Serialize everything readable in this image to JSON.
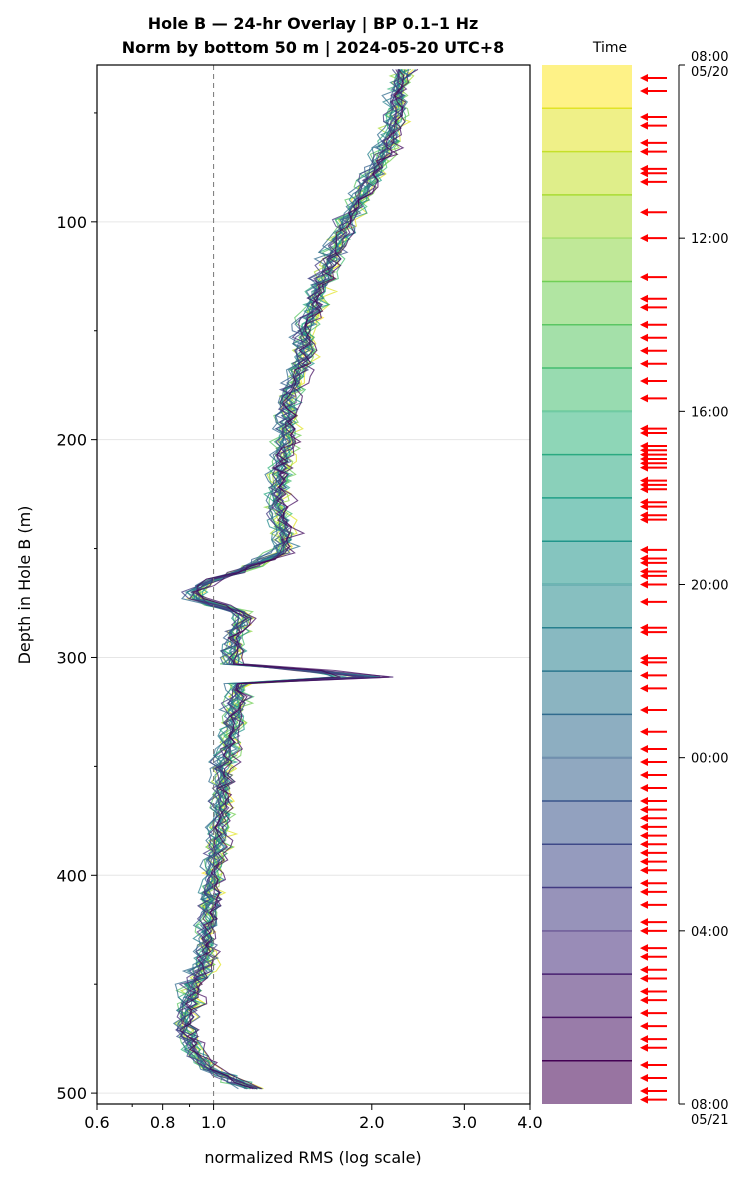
{
  "chart_data": {
    "type": "line",
    "title": "Hole B — 24-hr Overlay  |  BP 0.1–1 Hz",
    "subtitle": "Norm by bottom 50 m  |  2024-05-20 UTC+8",
    "xlabel": "normalized RMS  (log scale)",
    "ylabel": "Depth in Hole B (m)",
    "xscale": "log",
    "xlim": [
      0.6,
      4.0
    ],
    "ylim": [
      505,
      28
    ],
    "xticks": [
      0.6,
      0.8,
      1.0,
      2.0,
      3.0,
      4.0
    ],
    "xtick_labels": [
      "0.6",
      "0.8",
      "1.0",
      "2.0",
      "3.0",
      "4.0"
    ],
    "yticks": [
      100,
      200,
      300,
      400,
      500
    ],
    "ytick_labels": [
      "100",
      "200",
      "300",
      "400",
      "500"
    ],
    "reference_line_x": 1.0,
    "grid": "horizontal",
    "series_colormap": "viridis (late = dark purple, early = yellow)",
    "series_count": 24,
    "depth_start": 30,
    "depth_end": 498,
    "depth_step": 3,
    "typical_profile": [
      {
        "depth": 30,
        "value": 2.3
      },
      {
        "depth": 60,
        "value": 2.2
      },
      {
        "depth": 80,
        "value": 2.0
      },
      {
        "depth": 100,
        "value": 1.8
      },
      {
        "depth": 130,
        "value": 1.6
      },
      {
        "depth": 150,
        "value": 1.5
      },
      {
        "depth": 160,
        "value": 1.5
      },
      {
        "depth": 180,
        "value": 1.4
      },
      {
        "depth": 200,
        "value": 1.38
      },
      {
        "depth": 230,
        "value": 1.32
      },
      {
        "depth": 250,
        "value": 1.38
      },
      {
        "depth": 258,
        "value": 1.2
      },
      {
        "depth": 265,
        "value": 0.98
      },
      {
        "depth": 272,
        "value": 0.9
      },
      {
        "depth": 280,
        "value": 1.15
      },
      {
        "depth": 290,
        "value": 1.1
      },
      {
        "depth": 300,
        "value": 1.1
      },
      {
        "depth": 306,
        "value": 1.1
      },
      {
        "depth": 308,
        "value": 2.6
      },
      {
        "depth": 311,
        "value": 1.12
      },
      {
        "depth": 330,
        "value": 1.1
      },
      {
        "depth": 350,
        "value": 1.05
      },
      {
        "depth": 380,
        "value": 1.03
      },
      {
        "depth": 400,
        "value": 1.0
      },
      {
        "depth": 420,
        "value": 0.98
      },
      {
        "depth": 440,
        "value": 0.97
      },
      {
        "depth": 450,
        "value": 0.92
      },
      {
        "depth": 470,
        "value": 0.88
      },
      {
        "depth": 480,
        "value": 0.92
      },
      {
        "depth": 490,
        "value": 1.0
      },
      {
        "depth": 498,
        "value": 1.2
      }
    ],
    "colorbar": {
      "label": "Time",
      "tick_labels": [
        "08:00\n05/20",
        "12:00",
        "16:00",
        "20:00",
        "00:00",
        "04:00",
        "08:00\n05/21"
      ],
      "bands": 24,
      "marker_times_hours_since_start": [
        0.3,
        0.6,
        1.2,
        1.4,
        1.8,
        2.0,
        2.4,
        2.5,
        2.7,
        3.4,
        4.0,
        4.9,
        5.4,
        5.6,
        6.0,
        6.3,
        6.6,
        6.9,
        7.3,
        7.7,
        8.4,
        8.5,
        8.8,
        8.9,
        9.0,
        9.1,
        9.2,
        9.3,
        9.6,
        9.7,
        9.8,
        10.1,
        10.2,
        10.4,
        10.5,
        11.2,
        11.4,
        11.5,
        11.7,
        11.8,
        12.0,
        12.4,
        13.0,
        13.1,
        13.7,
        13.8,
        14.1,
        14.4,
        14.9,
        15.4,
        15.8,
        16.1,
        16.4,
        16.7,
        17.0,
        17.2,
        17.4,
        17.6,
        17.8,
        18.0,
        18.2,
        18.4,
        18.6,
        18.9,
        19.1,
        19.4,
        19.8,
        20.0,
        20.4,
        20.6,
        20.9,
        21.1,
        21.4,
        21.6,
        21.9,
        22.2,
        22.5,
        22.7,
        23.1,
        23.4,
        23.7,
        23.9
      ]
    }
  }
}
